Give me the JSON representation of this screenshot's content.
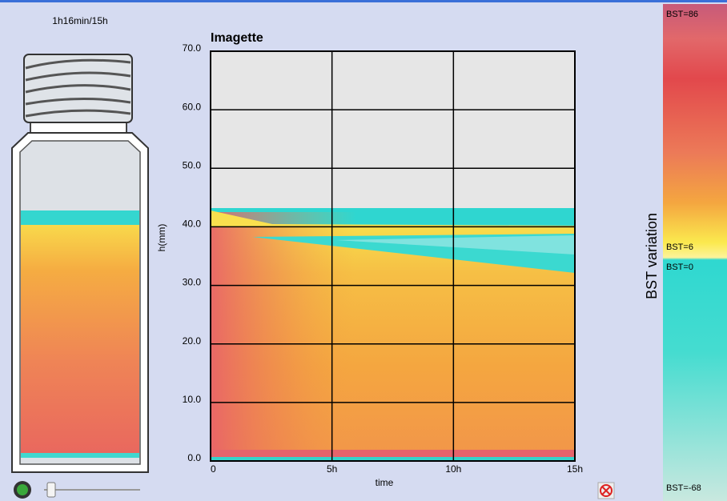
{
  "status": {
    "elapsed": "1h16min/15h"
  },
  "chart_data": {
    "type": "heatmap",
    "title": "Imagette",
    "x_label": "time",
    "y_label": "h(mm)",
    "xlim": [
      0,
      15
    ],
    "xticks": [
      0,
      {
        "value": 5,
        "label": "5h"
      },
      {
        "value": 10,
        "label": "10h"
      },
      {
        "value": 15,
        "label": "15h"
      }
    ],
    "ylim": [
      0,
      70
    ],
    "yticks": [
      {
        "value": 0,
        "label": "0.0"
      },
      {
        "value": 10,
        "label": "10.0"
      },
      {
        "value": 20,
        "label": "20.0"
      },
      {
        "value": 30,
        "label": "30.0"
      },
      {
        "value": 40,
        "label": "40.0"
      },
      {
        "value": 50,
        "label": "50.0"
      },
      {
        "value": 60,
        "label": "60.0"
      },
      {
        "value": 70,
        "label": "70.0"
      }
    ],
    "grid": true
  },
  "colorbar": {
    "title": "BST variation",
    "labels": [
      "BST=86",
      "BST=6",
      "BST=0",
      "BST=-68"
    ]
  }
}
